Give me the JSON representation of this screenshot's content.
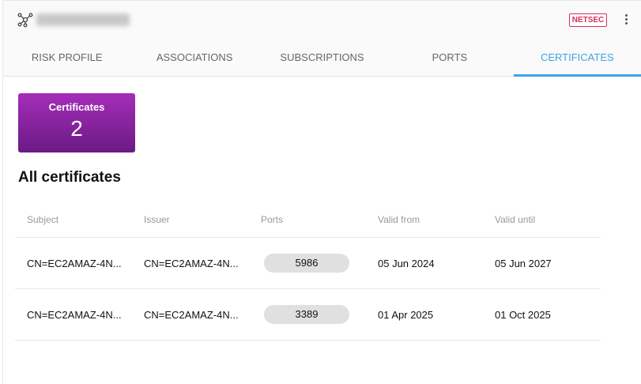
{
  "header": {
    "badge": "NETSEC"
  },
  "tabs": [
    {
      "label": "RISK PROFILE"
    },
    {
      "label": "ASSOCIATIONS"
    },
    {
      "label": "SUBSCRIPTIONS"
    },
    {
      "label": "PORTS"
    },
    {
      "label": "CERTIFICATES",
      "active": true
    }
  ],
  "summary": {
    "label": "Certificates",
    "count": "2"
  },
  "section_title": "All certificates",
  "table": {
    "columns": [
      "Subject",
      "Issuer",
      "Ports",
      "Valid from",
      "Valid until"
    ],
    "rows": [
      {
        "subject": "CN=EC2AMAZ-4N...",
        "issuer": "CN=EC2AMAZ-4N...",
        "port": "5986",
        "valid_from": "05 Jun 2024",
        "valid_until": "05 Jun 2027"
      },
      {
        "subject": "CN=EC2AMAZ-4N...",
        "issuer": "CN=EC2AMAZ-4N...",
        "port": "3389",
        "valid_from": "01 Apr 2025",
        "valid_until": "01 Oct 2025"
      }
    ]
  },
  "colors": {
    "accent": "#3aa6e6",
    "badge": "#d6305a",
    "card_top": "#a52db9",
    "card_bottom": "#6b1a85"
  }
}
